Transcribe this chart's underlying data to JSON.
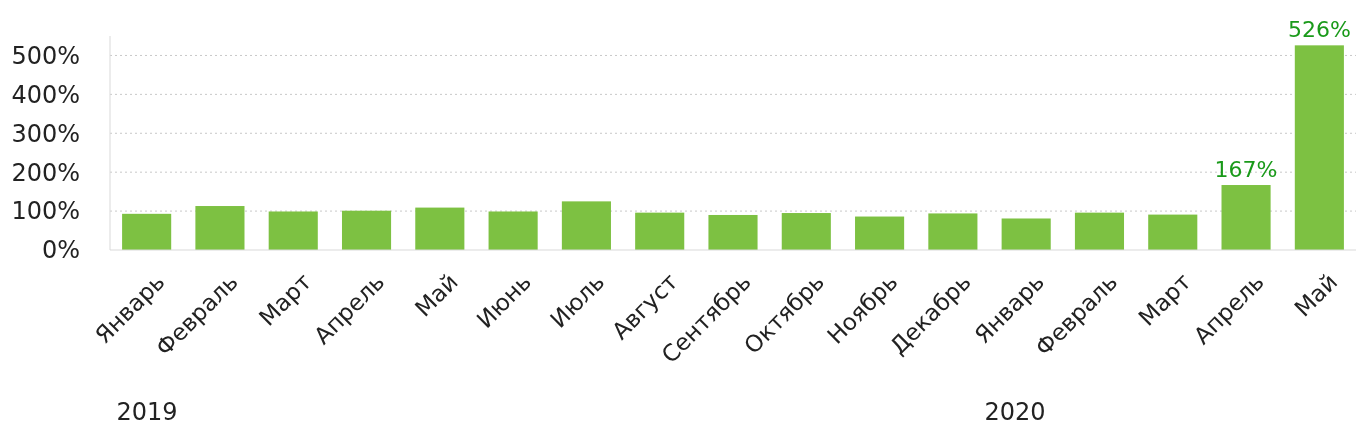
{
  "chart_data": {
    "type": "bar",
    "categories": [
      "Январь",
      "Февраль",
      "Март",
      "Апрель",
      "Май",
      "Июнь",
      "Июль",
      "Август",
      "Сентябрь",
      "Октябрь",
      "Ноябрь",
      "Декабрь",
      "Январь",
      "Февраль",
      "Март",
      "Апрель",
      "Май"
    ],
    "values": [
      93,
      113,
      99,
      101,
      109,
      99,
      125,
      96,
      90,
      95,
      86,
      94,
      81,
      96,
      91,
      167,
      526
    ],
    "value_labels": [
      null,
      null,
      null,
      null,
      null,
      null,
      null,
      null,
      null,
      null,
      null,
      null,
      null,
      null,
      null,
      "167%",
      "526%"
    ],
    "color": "#7dc142",
    "ylim": [
      0,
      550
    ],
    "yticks": [
      {
        "value": 0,
        "label": "0%"
      },
      {
        "value": 100,
        "label": "100%"
      },
      {
        "value": 200,
        "label": "200%"
      },
      {
        "value": 300,
        "label": "300%"
      },
      {
        "value": 400,
        "label": "400%"
      },
      {
        "value": 500,
        "label": "500%"
      }
    ],
    "grid": "y",
    "annotations": [
      "2019",
      "2020"
    ]
  }
}
